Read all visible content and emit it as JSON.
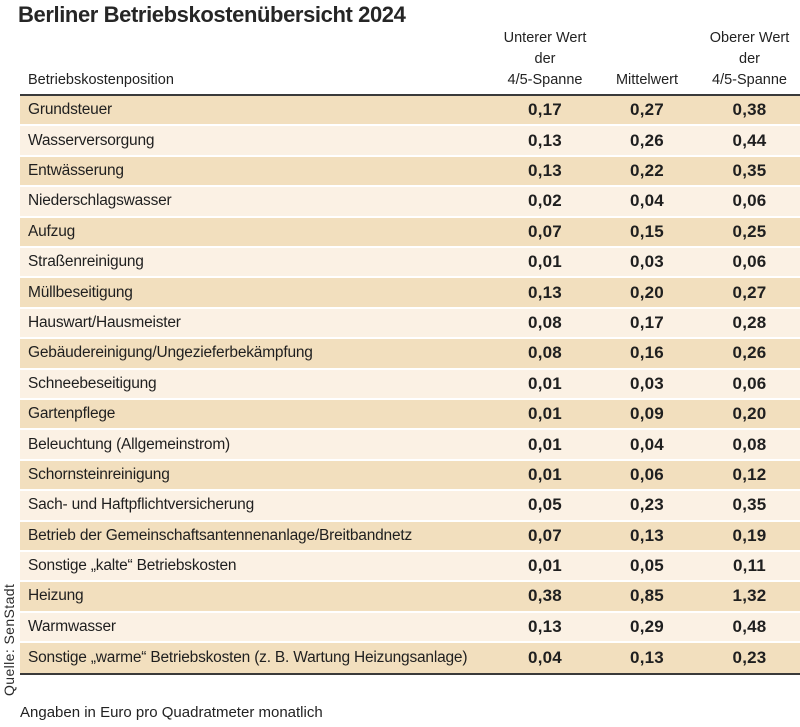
{
  "title": "Berliner Betriebskostenübersicht 2024",
  "source": "Quelle: SenStadt",
  "footnote": "Angaben in Euro pro Quadratmeter monatlich",
  "colors": {
    "row_dark": "#f2dfbe",
    "row_light": "#fbf1e4",
    "rule": "#3a3a3a",
    "text": "#1f1f1f"
  },
  "table": {
    "header": {
      "position": "Betriebskostenposition",
      "lower_line1": "Unterer Wert der",
      "lower_line2": "4/5-Spanne",
      "mean": "Mittelwert",
      "upper_line1": "Oberer Wert der",
      "upper_line2": "4/5-Spanne"
    },
    "rows": [
      {
        "label": "Grundsteuer",
        "lower": "0,17",
        "mean": "0,27",
        "upper": "0,38"
      },
      {
        "label": "Wasserversorgung",
        "lower": "0,13",
        "mean": "0,26",
        "upper": "0,44"
      },
      {
        "label": "Entwässerung",
        "lower": "0,13",
        "mean": "0,22",
        "upper": "0,35"
      },
      {
        "label": "Niederschlagswasser",
        "lower": "0,02",
        "mean": "0,04",
        "upper": "0,06"
      },
      {
        "label": "Aufzug",
        "lower": "0,07",
        "mean": "0,15",
        "upper": "0,25"
      },
      {
        "label": "Straßenreinigung",
        "lower": "0,01",
        "mean": "0,03",
        "upper": "0,06"
      },
      {
        "label": "Müllbeseitigung",
        "lower": "0,13",
        "mean": "0,20",
        "upper": "0,27"
      },
      {
        "label": "Hauswart/Hausmeister",
        "lower": "0,08",
        "mean": "0,17",
        "upper": "0,28"
      },
      {
        "label": "Gebäudereinigung/Ungezieferbekämpfung",
        "lower": "0,08",
        "mean": "0,16",
        "upper": "0,26"
      },
      {
        "label": "Schneebeseitigung",
        "lower": "0,01",
        "mean": "0,03",
        "upper": "0,06"
      },
      {
        "label": "Gartenpflege",
        "lower": "0,01",
        "mean": "0,09",
        "upper": "0,20"
      },
      {
        "label": "Beleuchtung (Allgemeinstrom)",
        "lower": "0,01",
        "mean": "0,04",
        "upper": "0,08"
      },
      {
        "label": "Schornsteinreinigung",
        "lower": "0,01",
        "mean": "0,06",
        "upper": "0,12"
      },
      {
        "label": "Sach- und Haftpflichtversicherung",
        "lower": "0,05",
        "mean": "0,23",
        "upper": "0,35"
      },
      {
        "label": "Betrieb der Gemeinschaftsantennenanlage/Breitbandnetz",
        "lower": "0,07",
        "mean": "0,13",
        "upper": "0,19"
      },
      {
        "label": "Sonstige „kalte“ Betriebskosten",
        "lower": "0,01",
        "mean": "0,05",
        "upper": "0,11"
      },
      {
        "label": "Heizung",
        "lower": "0,38",
        "mean": "0,85",
        "upper": "1,32"
      },
      {
        "label": "Warmwasser",
        "lower": "0,13",
        "mean": "0,29",
        "upper": "0,48"
      },
      {
        "label": "Sonstige „warme“ Betriebskosten (z. B. Wartung Heizungsanlage)",
        "lower": "0,04",
        "mean": "0,13",
        "upper": "0,23"
      }
    ]
  },
  "chart_data": {
    "type": "table",
    "title": "Berliner Betriebskostenübersicht 2024",
    "columns": [
      "Betriebskostenposition",
      "Unterer Wert der 4/5-Spanne",
      "Mittelwert",
      "Oberer Wert der 4/5-Spanne"
    ],
    "unit": "Euro pro Quadratmeter monatlich",
    "source": "Quelle: SenStadt",
    "rows": [
      [
        "Grundsteuer",
        0.17,
        0.27,
        0.38
      ],
      [
        "Wasserversorgung",
        0.13,
        0.26,
        0.44
      ],
      [
        "Entwässerung",
        0.13,
        0.22,
        0.35
      ],
      [
        "Niederschlagswasser",
        0.02,
        0.04,
        0.06
      ],
      [
        "Aufzug",
        0.07,
        0.15,
        0.25
      ],
      [
        "Straßenreinigung",
        0.01,
        0.03,
        0.06
      ],
      [
        "Müllbeseitigung",
        0.13,
        0.2,
        0.27
      ],
      [
        "Hauswart/Hausmeister",
        0.08,
        0.17,
        0.28
      ],
      [
        "Gebäudereinigung/Ungezieferbekämpfung",
        0.08,
        0.16,
        0.26
      ],
      [
        "Schneebeseitigung",
        0.01,
        0.03,
        0.06
      ],
      [
        "Gartenpflege",
        0.01,
        0.09,
        0.2
      ],
      [
        "Beleuchtung (Allgemeinstrom)",
        0.01,
        0.04,
        0.08
      ],
      [
        "Schornsteinreinigung",
        0.01,
        0.06,
        0.12
      ],
      [
        "Sach- und Haftpflichtversicherung",
        0.05,
        0.23,
        0.35
      ],
      [
        "Betrieb der Gemeinschaftsantennenanlage/Breitbandnetz",
        0.07,
        0.13,
        0.19
      ],
      [
        "Sonstige „kalte“ Betriebskosten",
        0.01,
        0.05,
        0.11
      ],
      [
        "Heizung",
        0.38,
        0.85,
        1.32
      ],
      [
        "Warmwasser",
        0.13,
        0.29,
        0.48
      ],
      [
        "Sonstige „warme“ Betriebskosten (z. B. Wartung Heizungsanlage)",
        0.04,
        0.13,
        0.23
      ]
    ]
  }
}
